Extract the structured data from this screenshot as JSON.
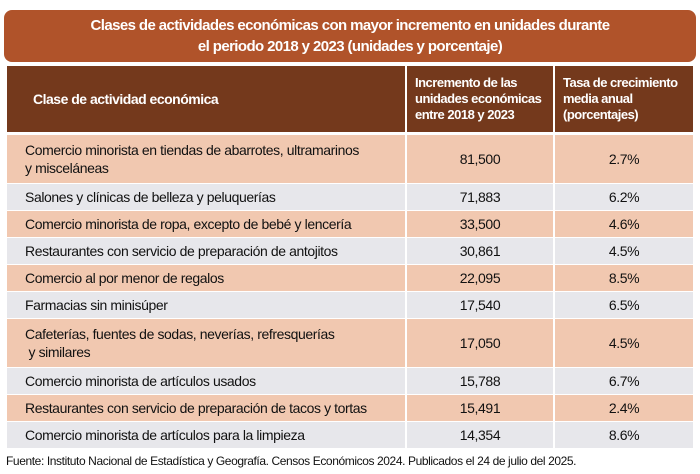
{
  "title": {
    "line1": "Clases de actividades económicas con mayor incremento en unidades durante",
    "line2": "el periodo 2018 y 2023 (unidades y porcentaje)"
  },
  "table": {
    "headers": [
      {
        "lines": [
          "Clase de actividad económica"
        ]
      },
      {
        "lines": [
          "Incremento de las",
          "unidades económicas",
          "entre 2018 y 2023"
        ]
      },
      {
        "lines": [
          "Tasa de crecimiento",
          "media anual",
          "(porcentajes)"
        ]
      }
    ],
    "rows": [
      {
        "clase": [
          "Comercio minorista en tiendas de abarrotes, ultramarinos",
          "y misceláneas"
        ],
        "incremento": "81,500",
        "tasa": "2.7%"
      },
      {
        "clase": [
          "Salones y clínicas de belleza y peluquerías"
        ],
        "incremento": "71,883",
        "tasa": "6.2%"
      },
      {
        "clase": [
          "Comercio minorista de ropa, excepto de bebé y lencería"
        ],
        "incremento": "33,500",
        "tasa": "4.6%"
      },
      {
        "clase": [
          "Restaurantes con servicio de preparación de antojitos"
        ],
        "incremento": "30,861",
        "tasa": "4.5%"
      },
      {
        "clase": [
          "Comercio al por menor de regalos"
        ],
        "incremento": "22,095",
        "tasa": "8.5%"
      },
      {
        "clase": [
          "Farmacias sin minisúper"
        ],
        "incremento": "17,540",
        "tasa": "6.5%"
      },
      {
        "clase": [
          "Cafeterías, fuentes de sodas, neverías, refresquerías",
          " y similares"
        ],
        "incremento": "17,050",
        "tasa": "4.5%"
      },
      {
        "clase": [
          "Comercio minorista de artículos usados"
        ],
        "incremento": "15,788",
        "tasa": "6.7%"
      },
      {
        "clase": [
          "Restaurantes con servicio de preparación de tacos y tortas"
        ],
        "incremento": "15,491",
        "tasa": "2.4%"
      },
      {
        "clase": [
          "Comercio minorista de artículos para la limpieza"
        ],
        "incremento": "14,354",
        "tasa": "8.6%"
      }
    ]
  },
  "source": "Fuente: Instituto Nacional de Estadística y Geografía. Censos Económicos 2024. Publicados el 24 de julio del 2025.",
  "colors": {
    "title_bg": "#b0532a",
    "header_bg": "#74391c",
    "row_odd": "#f1c8b0",
    "row_even": "#e7e7eb"
  }
}
